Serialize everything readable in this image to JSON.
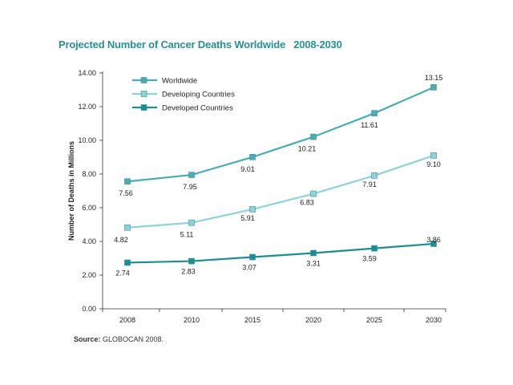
{
  "chart_data": {
    "type": "line",
    "title": "Projected Number of Cancer Deaths Worldwide   2008-2030",
    "ylabel": "Number of Deaths in Millions",
    "xlabel": "",
    "x": [
      "2008",
      "2010",
      "2015",
      "2020",
      "2025",
      "2030"
    ],
    "yticks": [
      "0.00",
      "2.00",
      "4.00",
      "6.00",
      "8.00",
      "10.00",
      "12.00",
      "14.00"
    ],
    "ylim": [
      0,
      14
    ],
    "grid": false,
    "legend_position": "top-left",
    "series": [
      {
        "name": "Worldwide",
        "values": [
          7.56,
          7.95,
          9.01,
          10.21,
          11.61,
          13.15
        ],
        "labels": [
          "7.56",
          "7.95",
          "9.01",
          "10.21",
          "11.61",
          "13.15"
        ],
        "color": "#4aadb5"
      },
      {
        "name": "Developing Countries",
        "values": [
          4.82,
          5.11,
          5.91,
          6.83,
          7.91,
          9.1
        ],
        "labels": [
          "4.82",
          "5.11",
          "5.91",
          "6.83",
          "7.91",
          "9.10"
        ],
        "color": "#8ed3d7"
      },
      {
        "name": "Developed Countries",
        "values": [
          2.74,
          2.83,
          3.07,
          3.31,
          3.59,
          3.86
        ],
        "labels": [
          "2.74",
          "2.83",
          "3.07",
          "3.31",
          "3.59",
          "3.86"
        ],
        "color": "#1a8e94"
      }
    ]
  },
  "source": {
    "label": "Source:",
    "text": " GLOBOCAN 2008."
  }
}
